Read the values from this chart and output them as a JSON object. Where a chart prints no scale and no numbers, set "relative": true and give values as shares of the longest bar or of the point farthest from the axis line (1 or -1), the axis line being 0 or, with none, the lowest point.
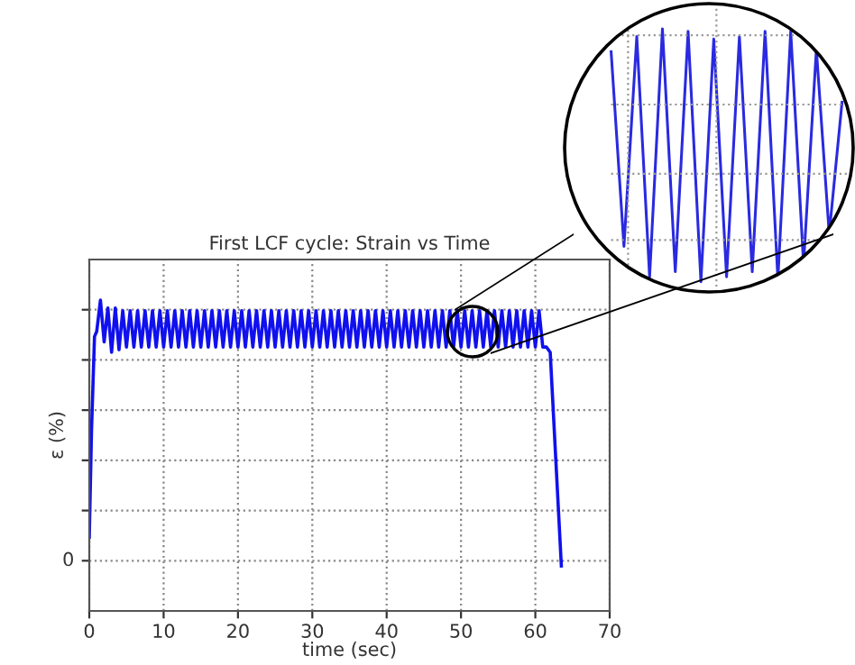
{
  "chart_data": [
    {
      "type": "line",
      "title": "First LCF cycle: Strain vs Time",
      "xlabel": "time (sec)",
      "ylabel": "ε (%)",
      "relative": true,
      "xlim": [
        0,
        70
      ],
      "xticks": [
        0,
        10,
        20,
        30,
        40,
        50,
        60,
        70
      ],
      "annotations": [
        "0"
      ],
      "grid": true,
      "line_style": "solid",
      "marker": "none",
      "series": [
        {
          "color": "#1010ee",
          "x": [
            0,
            0.3,
            0.7,
            1.0,
            1.5,
            2.0,
            2.5,
            3.0,
            3.5,
            4.0,
            4.5,
            5.0,
            5.5,
            6.0,
            6.5,
            7.0,
            7.5,
            8.0,
            8.5,
            9.0,
            9.5,
            10.0,
            10.5,
            11.0,
            11.5,
            12.0,
            12.5,
            13.0,
            13.5,
            14.0,
            14.5,
            15.0,
            15.5,
            16.0,
            16.5,
            17.0,
            17.5,
            18.0,
            18.5,
            19.0,
            19.5,
            20.0,
            20.5,
            21.0,
            21.5,
            22.0,
            22.5,
            23.0,
            23.5,
            24.0,
            24.5,
            25.0,
            25.5,
            26.0,
            26.5,
            27.0,
            27.5,
            28.0,
            28.5,
            29.0,
            29.5,
            30.0,
            30.5,
            31.0,
            31.5,
            32.0,
            32.5,
            33.0,
            33.5,
            34.0,
            34.5,
            35.0,
            35.5,
            36.0,
            36.5,
            37.0,
            37.5,
            38.0,
            38.5,
            39.0,
            39.5,
            40.0,
            40.5,
            41.0,
            41.5,
            42.0,
            42.5,
            43.0,
            43.5,
            44.0,
            44.5,
            45.0,
            45.5,
            46.0,
            46.5,
            47.0,
            47.5,
            48.0,
            48.5,
            49.0,
            49.5,
            50.0,
            50.5,
            51.0,
            51.5,
            52.0,
            52.5,
            53.0,
            53.5,
            54.0,
            54.5,
            55.0,
            55.5,
            56.0,
            56.5,
            57.0,
            57.5,
            58.0,
            58.5,
            59.0,
            59.5,
            60.0,
            60.5,
            61.0,
            61.5,
            62.0,
            63.5
          ],
          "values": [
            0.09,
            0.5,
            0.86,
            0.88,
            1.0,
            0.84,
            0.97,
            0.8,
            0.97,
            0.81,
            0.96,
            0.82,
            0.96,
            0.82,
            0.96,
            0.82,
            0.96,
            0.82,
            0.96,
            0.82,
            0.96,
            0.82,
            0.96,
            0.82,
            0.96,
            0.82,
            0.96,
            0.82,
            0.96,
            0.82,
            0.96,
            0.82,
            0.96,
            0.82,
            0.96,
            0.82,
            0.96,
            0.82,
            0.96,
            0.82,
            0.96,
            0.82,
            0.96,
            0.82,
            0.96,
            0.82,
            0.96,
            0.82,
            0.96,
            0.82,
            0.96,
            0.82,
            0.96,
            0.82,
            0.96,
            0.82,
            0.96,
            0.82,
            0.96,
            0.82,
            0.96,
            0.82,
            0.96,
            0.82,
            0.96,
            0.82,
            0.96,
            0.82,
            0.96,
            0.82,
            0.96,
            0.82,
            0.96,
            0.82,
            0.96,
            0.82,
            0.96,
            0.82,
            0.96,
            0.82,
            0.96,
            0.82,
            0.96,
            0.82,
            0.96,
            0.82,
            0.96,
            0.82,
            0.96,
            0.82,
            0.96,
            0.82,
            0.96,
            0.82,
            0.96,
            0.82,
            0.96,
            0.82,
            0.96,
            0.82,
            0.96,
            0.82,
            0.96,
            0.82,
            0.96,
            0.82,
            0.96,
            0.82,
            0.96,
            0.82,
            0.96,
            0.82,
            0.96,
            0.82,
            0.96,
            0.82,
            0.96,
            0.82,
            0.96,
            0.82,
            0.96,
            0.82,
            0.96,
            0.82,
            0.82,
            0.8,
            -0.02
          ]
        }
      ]
    },
    {
      "type": "line",
      "relative": true,
      "grid": true,
      "line_style": "solid",
      "marker": "none",
      "categories": [
        null,
        null,
        null,
        null,
        null,
        null,
        null,
        null,
        null,
        null,
        null,
        null,
        null,
        null,
        null,
        null,
        null,
        null,
        null
      ],
      "series": [
        {
          "color": "#2a2ae0",
          "values": [
            0.91,
            0.14,
            0.97,
            0.02,
            1.0,
            0.04,
            0.99,
            0.0,
            0.96,
            0.02,
            0.97,
            0.04,
            0.99,
            0.01,
            0.99,
            0.07,
            0.92,
            0.19,
            0.71
          ]
        }
      ]
    }
  ]
}
